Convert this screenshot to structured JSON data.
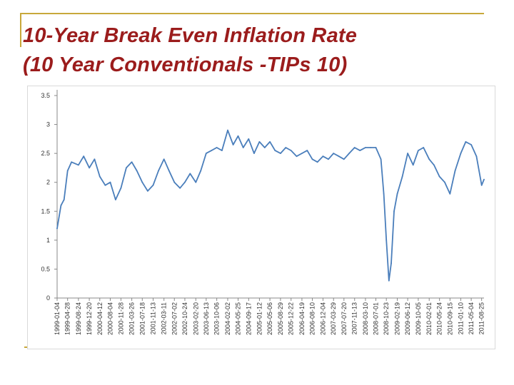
{
  "slide": {
    "title_line1": "10-Year Break Even Inflation Rate",
    "title_line2": "(10 Year Conventionals -TIPs 10)",
    "title_color": "#9b1c1c",
    "decoration_color": "#c8a83a"
  },
  "chart_data": {
    "type": "line",
    "title": "",
    "xlabel": "",
    "ylabel": "",
    "ylim": [
      0,
      3.5
    ],
    "y_ticks": [
      "0",
      "0.5",
      "1",
      "1.5",
      "2",
      "2.5",
      "3",
      "3.5"
    ],
    "x_tick_labels": [
      "1999-01-04",
      "1999-04-28",
      "1999-08-24",
      "1999-12-20",
      "2000-04-12",
      "2000-08-04",
      "2000-11-28",
      "2001-03-26",
      "2001-07-18",
      "2001-11-13",
      "2002-03-11",
      "2002-07-02",
      "2002-10-24",
      "2003-02-20",
      "2003-06-13",
      "2003-10-06",
      "2004-02-02",
      "2004-05-25",
      "2004-09-17",
      "2005-01-12",
      "2005-05-06",
      "2005-08-29",
      "2005-12-22",
      "2006-04-19",
      "2006-08-10",
      "2006-12-04",
      "2007-03-29",
      "2007-07-20",
      "2007-11-13",
      "2008-03-10",
      "2008-07-01",
      "2008-10-23",
      "2009-02-19",
      "2009-06-12",
      "2009-10-05",
      "2010-02-01",
      "2010-05-24",
      "2010-09-15",
      "2011-01-10",
      "2011-05-04",
      "2011-08-25"
    ],
    "grid": false,
    "legend": "none",
    "line_color": "#4a7ebb",
    "series": [
      {
        "x": [
          "1999-01-04",
          "1999-02-15",
          "1999-03-20",
          "1999-04-28",
          "1999-06-10",
          "1999-08-24",
          "1999-10-20",
          "1999-12-20",
          "2000-02-15",
          "2000-04-12",
          "2000-06-10",
          "2000-08-04",
          "2000-10-01",
          "2000-11-28",
          "2001-01-25",
          "2001-03-26",
          "2001-05-20",
          "2001-07-18",
          "2001-09-15",
          "2001-11-13",
          "2002-01-10",
          "2002-03-11",
          "2002-05-05",
          "2002-07-02",
          "2002-09-01",
          "2002-10-24",
          "2002-12-20",
          "2003-02-20",
          "2003-04-15",
          "2003-06-13",
          "2003-08-10",
          "2003-10-06",
          "2003-12-01",
          "2004-02-02",
          "2004-04-01",
          "2004-05-25",
          "2004-07-20",
          "2004-09-17",
          "2004-11-15",
          "2005-01-12",
          "2005-03-10",
          "2005-05-06",
          "2005-07-01",
          "2005-08-29",
          "2005-10-25",
          "2005-12-22",
          "2006-02-20",
          "2006-04-19",
          "2006-06-15",
          "2006-08-10",
          "2006-10-05",
          "2006-12-04",
          "2007-02-01",
          "2007-03-29",
          "2007-05-25",
          "2007-07-20",
          "2007-09-15",
          "2007-11-13",
          "2008-01-10",
          "2008-03-10",
          "2008-05-05",
          "2008-07-01",
          "2008-08-25",
          "2008-09-25",
          "2008-10-23",
          "2008-11-20",
          "2008-12-15",
          "2009-01-15",
          "2009-02-19",
          "2009-04-15",
          "2009-06-12",
          "2009-08-10",
          "2009-10-05",
          "2009-12-01",
          "2010-02-01",
          "2010-03-25",
          "2010-05-24",
          "2010-07-20",
          "2010-09-15",
          "2010-11-10",
          "2011-01-10",
          "2011-03-05",
          "2011-05-04",
          "2011-06-30",
          "2011-08-25",
          "2011-09-20"
        ],
        "values": [
          1.2,
          1.6,
          1.7,
          2.2,
          2.35,
          2.3,
          2.45,
          2.25,
          2.4,
          2.1,
          1.95,
          2.0,
          1.7,
          1.9,
          2.25,
          2.35,
          2.2,
          2.0,
          1.85,
          1.95,
          2.2,
          2.4,
          2.2,
          2.0,
          1.9,
          2.0,
          2.15,
          2.0,
          2.2,
          2.5,
          2.55,
          2.6,
          2.55,
          2.9,
          2.65,
          2.8,
          2.6,
          2.75,
          2.5,
          2.7,
          2.6,
          2.7,
          2.55,
          2.5,
          2.6,
          2.55,
          2.45,
          2.5,
          2.55,
          2.4,
          2.35,
          2.45,
          2.4,
          2.5,
          2.45,
          2.4,
          2.5,
          2.6,
          2.55,
          2.6,
          2.6,
          2.6,
          2.4,
          1.8,
          1.0,
          0.3,
          0.6,
          1.5,
          1.8,
          2.1,
          2.5,
          2.3,
          2.55,
          2.6,
          2.4,
          2.3,
          2.1,
          2.0,
          1.8,
          2.2,
          2.5,
          2.7,
          2.65,
          2.45,
          1.95,
          2.05
        ]
      }
    ]
  }
}
